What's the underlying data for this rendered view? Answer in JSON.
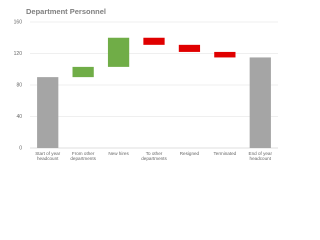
{
  "chart_data": {
    "type": "waterfall",
    "title": "Department Personnel",
    "categories": [
      "Start of year headcount",
      "From other departments",
      "New hires",
      "To other departments",
      "Resigned",
      "Terminated",
      "End of year headcount"
    ],
    "values": [
      90,
      13,
      37,
      -9,
      -9,
      -7,
      115
    ],
    "measure": [
      "absolute",
      "relative",
      "relative",
      "relative",
      "relative",
      "relative",
      "absolute"
    ],
    "colors": {
      "total": "#a5a5a5",
      "increase": "#70ad47",
      "decrease": "#e00000"
    },
    "ylim": [
      0,
      160
    ],
    "yticks": [
      0,
      40,
      80,
      120,
      160
    ],
    "grid": true
  }
}
